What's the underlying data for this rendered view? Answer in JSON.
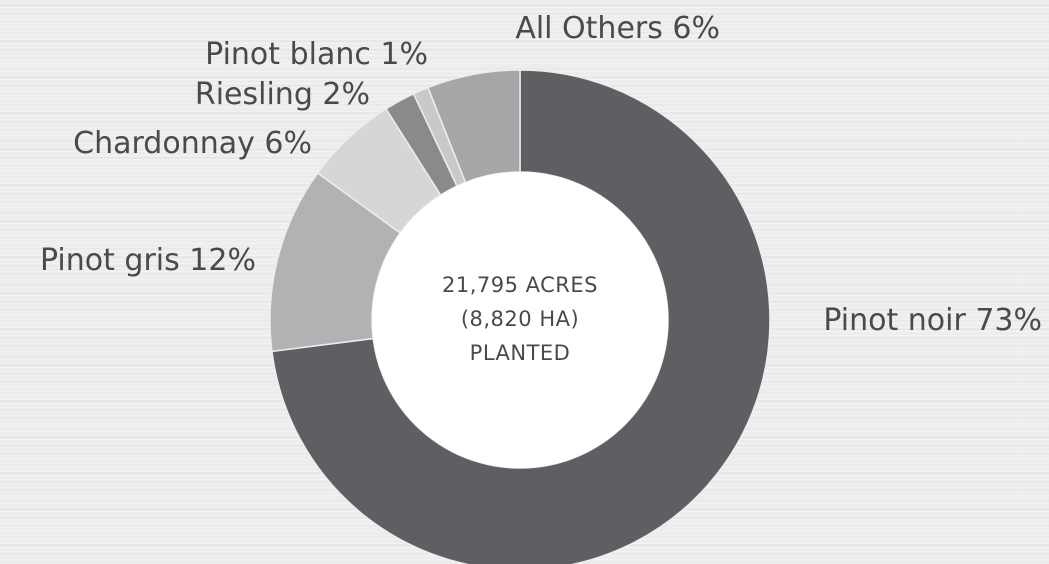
{
  "chart_data": {
    "type": "pie",
    "variant": "donut",
    "center_text": [
      "21,795 ACRES",
      "(8,820 HA)",
      "PLANTED"
    ],
    "slices": [
      {
        "name": "Pinot noir",
        "value": 73,
        "label": "Pinot noir 73%",
        "color": "#5f5f63"
      },
      {
        "name": "Pinot gris",
        "value": 12,
        "label": "Pinot gris 12%",
        "color": "#b2b2b4"
      },
      {
        "name": "Chardonnay",
        "value": 6,
        "label": "Chardonnay 6%",
        "color": "#d6d6d7"
      },
      {
        "name": "Riesling",
        "value": 2,
        "label": "Riesling 2%",
        "color": "#8a8a8d"
      },
      {
        "name": "Pinot blanc",
        "value": 1,
        "label": "Pinot blanc 1%",
        "color": "#c9c9cb"
      },
      {
        "name": "All Others",
        "value": 6,
        "label": "All Others 6%",
        "color": "#a6a6a8"
      }
    ],
    "background_color": "#ededed",
    "hole_color": "#ffffff",
    "text_color": "#4a4a4c"
  }
}
